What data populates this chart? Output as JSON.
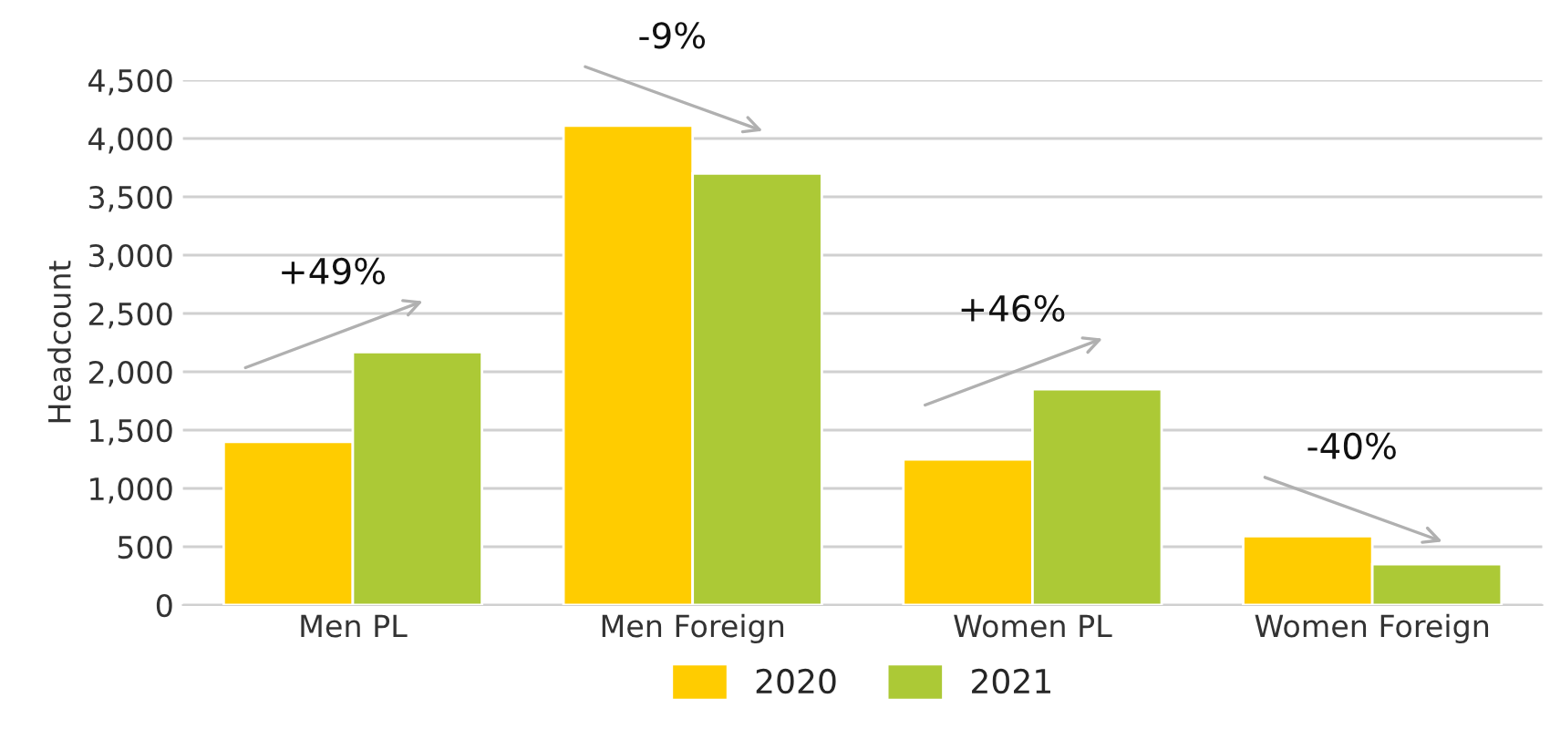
{
  "chart_data": {
    "type": "bar",
    "ylabel": "Headcount",
    "categories": [
      "Men PL",
      "Men Foreign",
      "Women PL",
      "Women Foreign"
    ],
    "series": [
      {
        "name": "2020",
        "color": "#ffcc00",
        "values": [
          1400,
          4110,
          1250,
          590
        ]
      },
      {
        "name": "2021",
        "color": "#acc936",
        "values": [
          2170,
          3700,
          1850,
          350
        ]
      }
    ],
    "ylim": [
      0,
      4500
    ],
    "yticks": [
      0,
      500,
      {
        "value": 1000,
        "label": "1,000"
      },
      {
        "value": 1500,
        "label": "1,500"
      },
      {
        "value": 2000,
        "label": "2,000"
      },
      {
        "value": 2500,
        "label": "2,500"
      },
      {
        "value": 3000,
        "label": "3,000"
      },
      {
        "value": 3500,
        "label": "3,500"
      },
      {
        "value": 4000,
        "label": "4,000"
      },
      {
        "value": 4500,
        "label": "4,500"
      }
    ],
    "grid": "y",
    "legend": "bottom",
    "annotations": [
      "+49%",
      "-9%",
      "+46%",
      "-40%"
    ]
  }
}
